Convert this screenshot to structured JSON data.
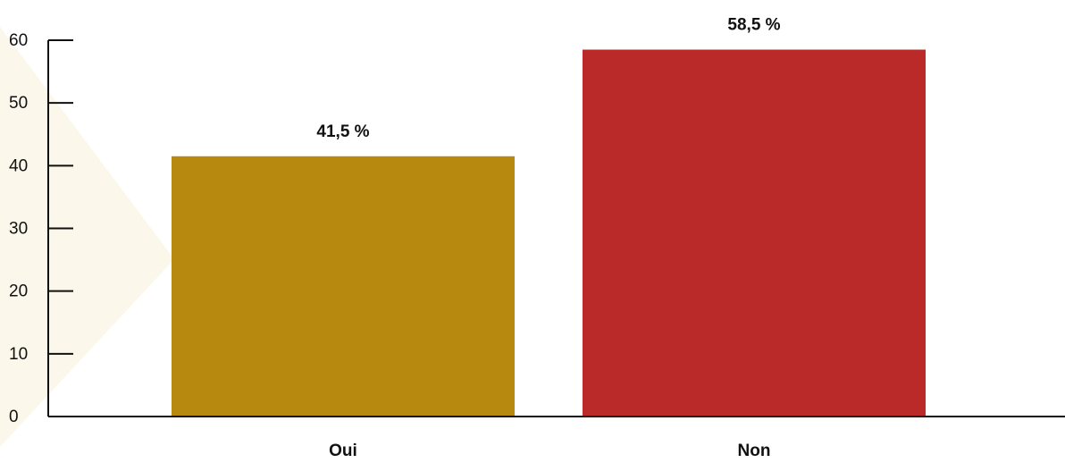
{
  "chart_data": {
    "type": "bar",
    "categories": [
      "Oui",
      "Non"
    ],
    "values": [
      41.5,
      58.5
    ],
    "value_labels": [
      "41,5 %",
      "58,5 %"
    ],
    "colors": [
      "#b8890f",
      "#b92a28"
    ],
    "ylim": [
      0,
      60
    ],
    "yticks": [
      "0",
      "10",
      "20",
      "30",
      "40",
      "50",
      "60"
    ],
    "title": "",
    "xlabel": "",
    "ylabel": "",
    "grid": false,
    "legend": "none"
  },
  "theme": {
    "axis_color": "#111111",
    "background": "#ffffff",
    "watermark_color": "#fbf7ea"
  }
}
